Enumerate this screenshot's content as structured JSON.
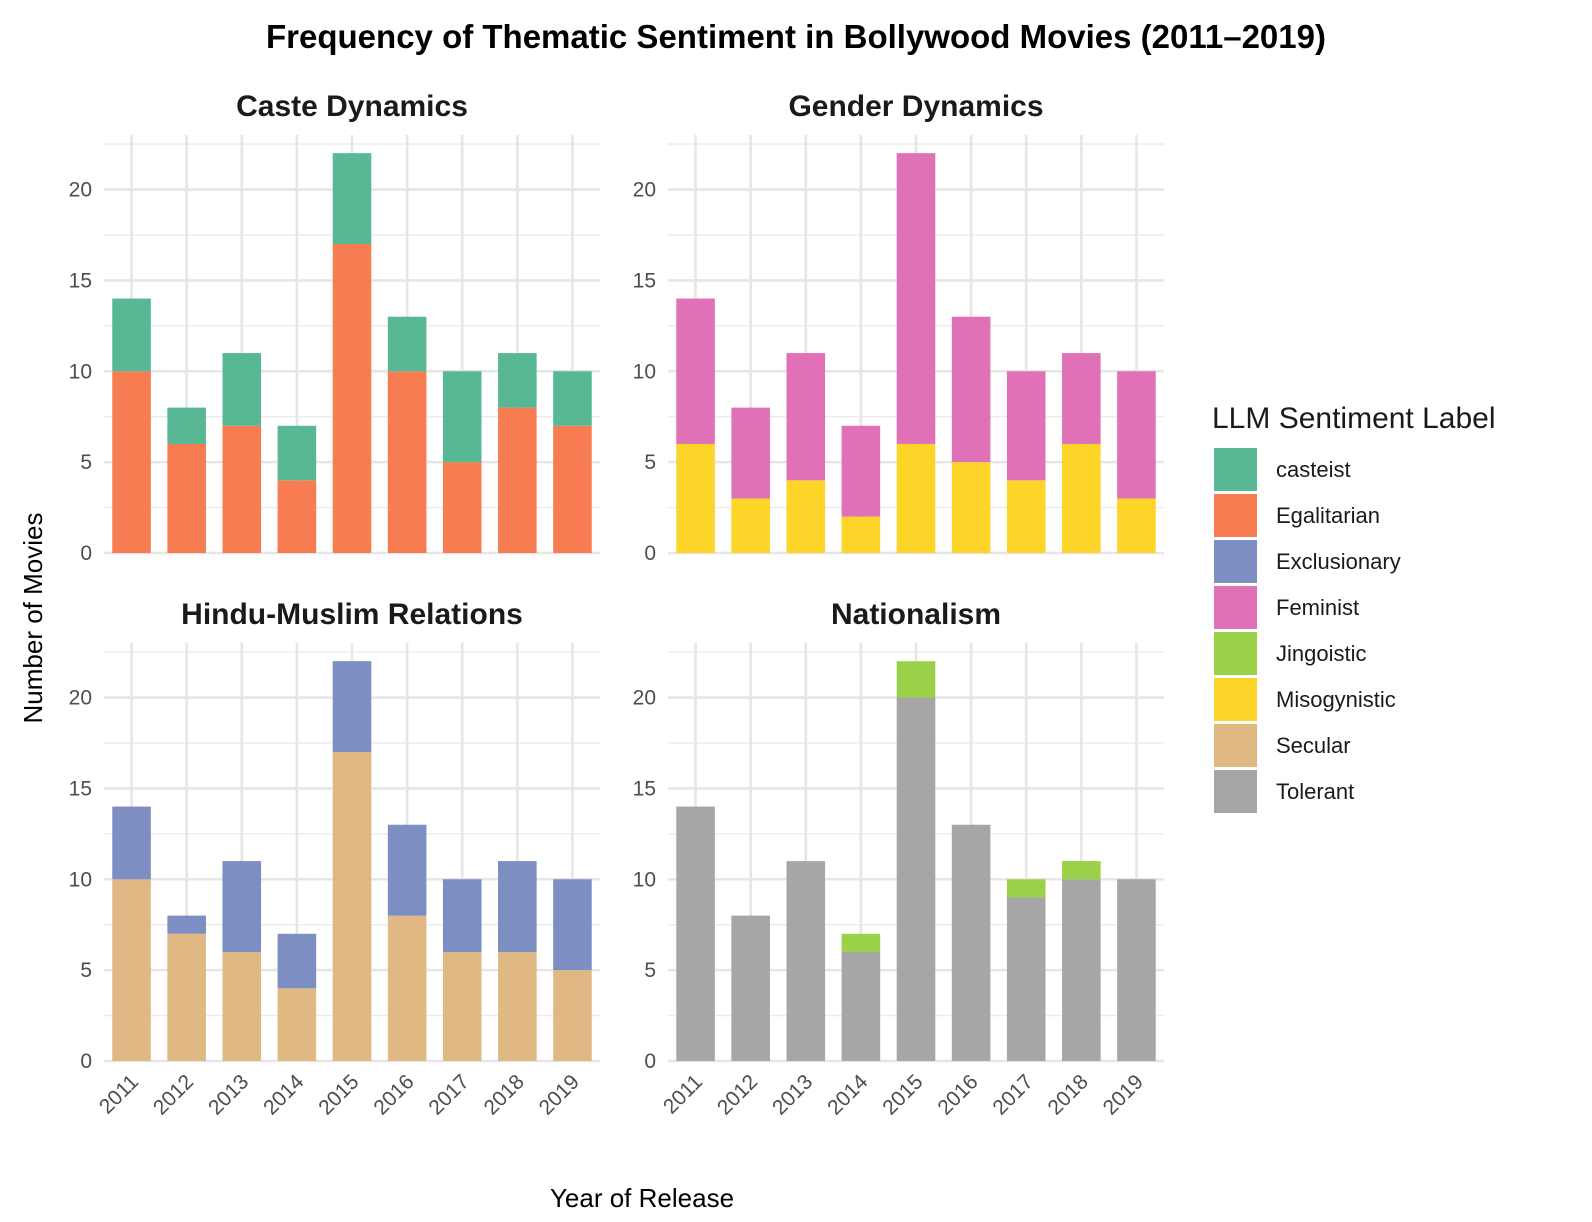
{
  "chart_data": {
    "type": "bar",
    "stacked": true,
    "title": "Frequency of Thematic Sentiment in Bollywood Movies (2011–2019)",
    "xlabel": "Year of Release",
    "ylabel": "Number of Movies",
    "ylim": [
      0,
      23
    ],
    "yticks": [
      "0",
      "5",
      "10",
      "15",
      "20"
    ],
    "grid": true,
    "legend": {
      "title": "LLM Sentiment Label",
      "placement": "right",
      "entries": [
        {
          "label": "casteist",
          "color": "#58b894"
        },
        {
          "label": "Egalitarian",
          "color": "#f77c52"
        },
        {
          "label": "Exclusionary",
          "color": "#7d8ec2"
        },
        {
          "label": "Feminist",
          "color": "#e071b6"
        },
        {
          "label": "Jingoistic",
          "color": "#9bd148"
        },
        {
          "label": "Misogynistic",
          "color": "#fdd428"
        },
        {
          "label": "Secular",
          "color": "#dfb883"
        },
        {
          "label": "Tolerant",
          "color": "#a6a6a6"
        }
      ]
    },
    "categories": [
      "2011",
      "2012",
      "2013",
      "2014",
      "2015",
      "2016",
      "2017",
      "2018",
      "2019"
    ],
    "panels": [
      {
        "title": "Caste Dynamics",
        "series": [
          {
            "name": "Egalitarian",
            "values": [
              10,
              6,
              7,
              4,
              17,
              10,
              5,
              8,
              7
            ]
          },
          {
            "name": "casteist",
            "values": [
              4,
              2,
              4,
              3,
              5,
              3,
              5,
              3,
              3
            ]
          }
        ]
      },
      {
        "title": "Gender Dynamics",
        "series": [
          {
            "name": "Misogynistic",
            "values": [
              6,
              3,
              4,
              2,
              6,
              5,
              4,
              6,
              3
            ]
          },
          {
            "name": "Feminist",
            "values": [
              8,
              5,
              7,
              5,
              16,
              8,
              6,
              5,
              7
            ]
          }
        ]
      },
      {
        "title": "Hindu-Muslim Relations",
        "series": [
          {
            "name": "Secular",
            "values": [
              10,
              7,
              6,
              4,
              17,
              8,
              6,
              6,
              5
            ]
          },
          {
            "name": "Exclusionary",
            "values": [
              4,
              1,
              5,
              3,
              5,
              5,
              4,
              5,
              5
            ]
          }
        ]
      },
      {
        "title": "Nationalism",
        "series": [
          {
            "name": "Tolerant",
            "values": [
              14,
              8,
              11,
              6,
              20,
              13,
              9,
              10,
              10
            ]
          },
          {
            "name": "Jingoistic",
            "values": [
              0,
              0,
              0,
              1,
              2,
              0,
              1,
              1,
              0
            ]
          }
        ]
      }
    ]
  }
}
